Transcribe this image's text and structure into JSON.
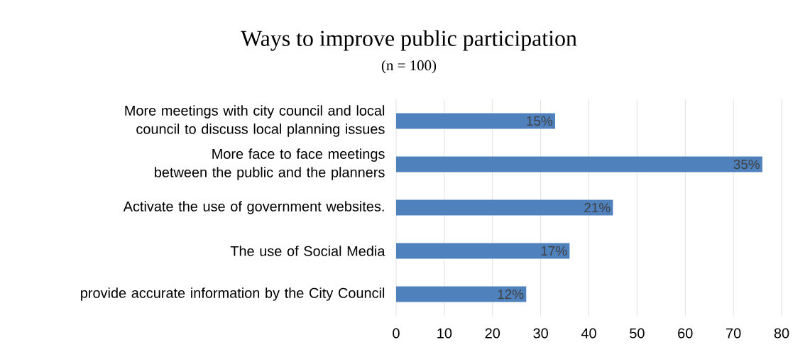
{
  "chart_data": {
    "type": "bar",
    "orientation": "horizontal",
    "title": "Ways to improve public participation",
    "subtitle": "(n = 100)",
    "categories": [
      "More meetings with city council and local council to discuss local planning issues",
      "More face to face meetings between the public and the planners",
      "Activate the use of government websites.",
      "The use of Social Media",
      "provide accurate information by the City Council"
    ],
    "values": [
      33,
      76,
      45,
      36,
      27
    ],
    "annotations": [
      {
        "text": "15%",
        "x": 33,
        "y": "More meetings with city council and local council to discuss local planning issues"
      },
      {
        "text": "35%",
        "x": 76,
        "y": "More face to face meetings between the public and the planners"
      },
      {
        "text": "21%",
        "x": 45,
        "y": "Activate the use of government websites."
      },
      {
        "text": "17%",
        "x": 36,
        "y": "The use of Social Media"
      },
      {
        "text": "12%",
        "x": 27,
        "y": "provide accurate information by the City Council"
      }
    ],
    "color": "#4f81bd",
    "xlim": [
      0,
      80
    ],
    "xticks": [
      0,
      10,
      20,
      30,
      40,
      50,
      60,
      70,
      80
    ],
    "grid": "x"
  }
}
